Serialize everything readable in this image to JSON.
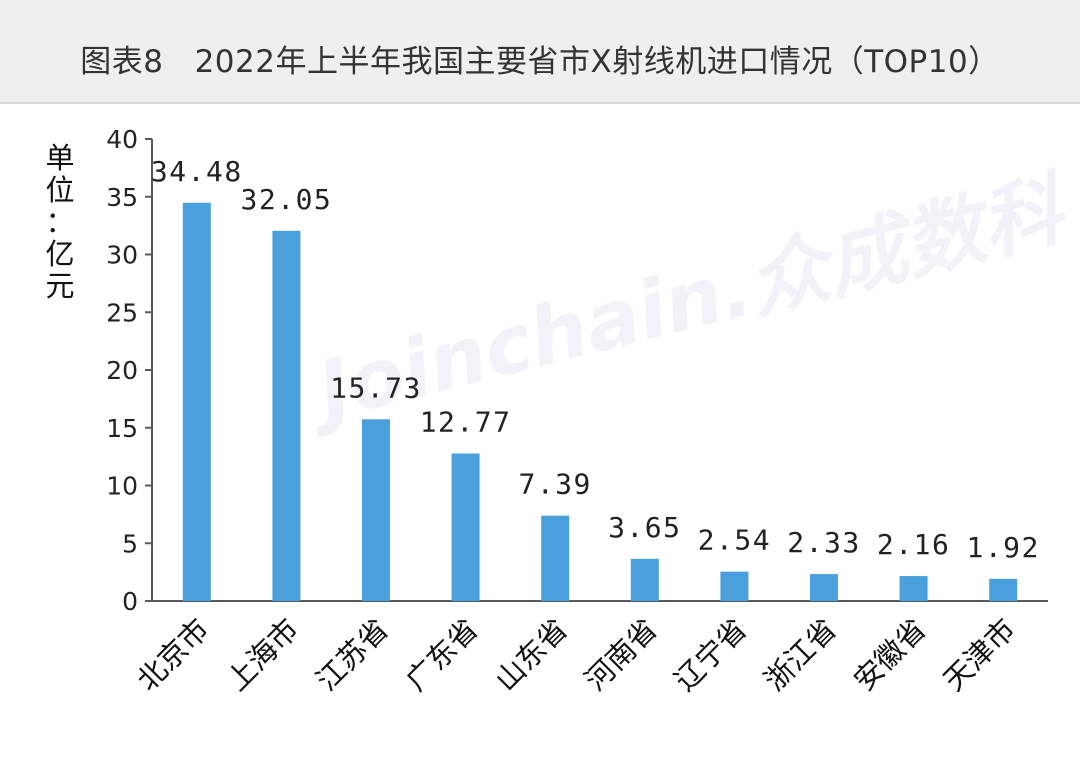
{
  "title": "图表8   2022年上半年我国主要省市X射线机进口情况（TOP10）",
  "ylabel": "单位：亿元",
  "watermark": "Joinchain.众成数科",
  "colors": {
    "bar": "#4a9fdd",
    "axis": "#595959",
    "header_bg": "#efefef"
  },
  "chart_data": {
    "type": "bar",
    "title": "2022年上半年我国主要省市X射线机进口情况（TOP10）",
    "ylabel": "单位：亿元",
    "xlabel": "",
    "ylim": [
      0,
      40
    ],
    "yticks": [
      0,
      5,
      10,
      15,
      20,
      25,
      30,
      35,
      40
    ],
    "grid": false,
    "categories": [
      "北京市",
      "上海市",
      "江苏省",
      "广东省",
      "山东省",
      "河南省",
      "辽宁省",
      "浙江省",
      "安徽省",
      "天津市"
    ],
    "values": [
      34.48,
      32.05,
      15.73,
      12.77,
      7.39,
      3.65,
      2.54,
      2.33,
      2.16,
      1.92
    ],
    "data_labels": [
      "34.48",
      "32.05",
      "15.73",
      "12.77",
      "7.39",
      "3.65",
      "2.54",
      "2.33",
      "2.16",
      "1.92"
    ]
  }
}
